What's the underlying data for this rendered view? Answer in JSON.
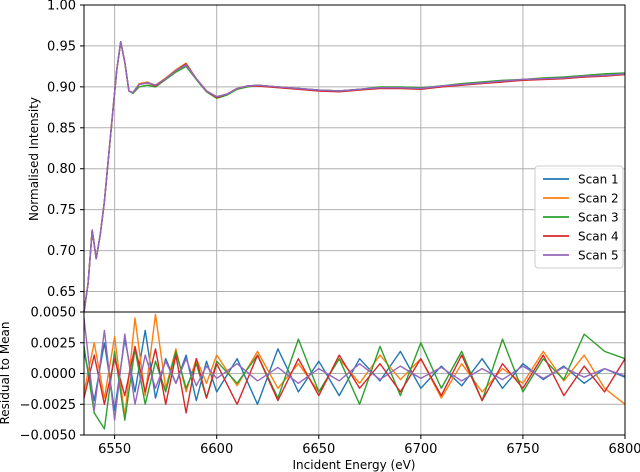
{
  "chart_data": [
    {
      "type": "line",
      "panel": "top",
      "xlabel": "",
      "ylabel": "Normalised Intensity",
      "xlim": [
        6535,
        6800
      ],
      "ylim": [
        0.625,
        1.0
      ],
      "grid": true,
      "legend_position": "center-right",
      "xticks": [
        6550,
        6600,
        6650,
        6700,
        6750,
        6800
      ],
      "yticks": [
        0.65,
        0.7,
        0.75,
        0.8,
        0.85,
        0.9,
        0.95,
        1.0
      ],
      "ytick_labels": [
        "0.65",
        "0.70",
        "0.75",
        "0.80",
        "0.85",
        "0.90",
        "0.95",
        "1.00"
      ],
      "x": [
        6535,
        6537,
        6539,
        6541,
        6543,
        6545,
        6548,
        6551,
        6553,
        6555,
        6557,
        6559,
        6562,
        6566,
        6570,
        6575,
        6580,
        6585,
        6590,
        6595,
        6600,
        6605,
        6610,
        6615,
        6620,
        6630,
        6640,
        6650,
        6660,
        6670,
        6680,
        6690,
        6700,
        6710,
        6720,
        6730,
        6740,
        6750,
        6760,
        6770,
        6780,
        6790,
        6800
      ],
      "series": [
        {
          "name": "Scan 1",
          "color": "#1f77b4",
          "values": [
            0.625,
            0.66,
            0.725,
            0.69,
            0.72,
            0.76,
            0.84,
            0.92,
            0.955,
            0.93,
            0.895,
            0.893,
            0.903,
            0.905,
            0.902,
            0.91,
            0.92,
            0.927,
            0.91,
            0.895,
            0.888,
            0.891,
            0.898,
            0.901,
            0.902,
            0.9,
            0.898,
            0.896,
            0.895,
            0.897,
            0.899,
            0.899,
            0.898,
            0.901,
            0.903,
            0.905,
            0.907,
            0.909,
            0.91,
            0.911,
            0.913,
            0.914,
            0.916
          ]
        },
        {
          "name": "Scan 2",
          "color": "#ff7f0e",
          "values": [
            0.625,
            0.66,
            0.725,
            0.69,
            0.72,
            0.76,
            0.84,
            0.92,
            0.955,
            0.93,
            0.895,
            0.893,
            0.904,
            0.906,
            0.902,
            0.911,
            0.921,
            0.929,
            0.91,
            0.895,
            0.888,
            0.891,
            0.898,
            0.901,
            0.902,
            0.9,
            0.898,
            0.896,
            0.895,
            0.897,
            0.899,
            0.899,
            0.898,
            0.9,
            0.902,
            0.905,
            0.907,
            0.908,
            0.91,
            0.911,
            0.912,
            0.914,
            0.915
          ]
        },
        {
          "name": "Scan 3",
          "color": "#2ca02c",
          "values": [
            0.625,
            0.66,
            0.725,
            0.69,
            0.72,
            0.76,
            0.84,
            0.92,
            0.955,
            0.93,
            0.895,
            0.892,
            0.9,
            0.902,
            0.9,
            0.909,
            0.918,
            0.925,
            0.909,
            0.894,
            0.886,
            0.89,
            0.897,
            0.9,
            0.902,
            0.9,
            0.898,
            0.896,
            0.895,
            0.897,
            0.9,
            0.9,
            0.899,
            0.901,
            0.904,
            0.906,
            0.908,
            0.909,
            0.911,
            0.912,
            0.914,
            0.916,
            0.917
          ]
        },
        {
          "name": "Scan 4",
          "color": "#d62728",
          "values": [
            0.625,
            0.66,
            0.725,
            0.69,
            0.72,
            0.76,
            0.84,
            0.92,
            0.955,
            0.93,
            0.895,
            0.893,
            0.903,
            0.905,
            0.901,
            0.91,
            0.92,
            0.928,
            0.91,
            0.895,
            0.887,
            0.891,
            0.898,
            0.901,
            0.901,
            0.899,
            0.897,
            0.895,
            0.894,
            0.896,
            0.898,
            0.898,
            0.897,
            0.9,
            0.902,
            0.904,
            0.906,
            0.908,
            0.909,
            0.91,
            0.912,
            0.913,
            0.915
          ]
        },
        {
          "name": "Scan 5",
          "color": "#9467bd",
          "values": [
            0.625,
            0.66,
            0.725,
            0.69,
            0.72,
            0.76,
            0.84,
            0.92,
            0.955,
            0.93,
            0.895,
            0.893,
            0.903,
            0.905,
            0.902,
            0.91,
            0.92,
            0.927,
            0.91,
            0.895,
            0.888,
            0.891,
            0.898,
            0.901,
            0.902,
            0.9,
            0.898,
            0.896,
            0.895,
            0.897,
            0.899,
            0.899,
            0.898,
            0.901,
            0.903,
            0.905,
            0.907,
            0.909,
            0.91,
            0.911,
            0.913,
            0.914,
            0.916
          ]
        }
      ]
    },
    {
      "type": "line",
      "panel": "bottom",
      "xlabel": "Incident Energy (eV)",
      "ylabel": "Residual to Mean",
      "xlim": [
        6535,
        6800
      ],
      "ylim": [
        -0.005,
        0.005
      ],
      "grid": true,
      "xticks": [
        6550,
        6600,
        6650,
        6700,
        6750,
        6800
      ],
      "yticks": [
        -0.005,
        -0.0025,
        0.0,
        0.0025,
        0.005
      ],
      "ytick_labels": [
        "−0.0050",
        "−0.0025",
        "0.0000",
        "0.0025",
        "0.0050"
      ],
      "x": [
        6535,
        6540,
        6545,
        6550,
        6555,
        6560,
        6565,
        6570,
        6575,
        6580,
        6585,
        6590,
        6595,
        6600,
        6610,
        6620,
        6630,
        6640,
        6650,
        6660,
        6670,
        6680,
        6690,
        6700,
        6710,
        6720,
        6730,
        6740,
        6750,
        6760,
        6770,
        6780,
        6790,
        6800
      ],
      "series": [
        {
          "name": "Scan 1",
          "color": "#1f77b4",
          "values": [
            0.0018,
            -0.0022,
            0.0025,
            -0.003,
            0.0028,
            -0.0015,
            0.0035,
            -0.002,
            0.0012,
            -0.0008,
            0.0015,
            -0.0022,
            0.001,
            -0.0015,
            0.0012,
            -0.0025,
            0.002,
            -0.0015,
            0.001,
            -0.0018,
            0.0012,
            -0.0006,
            0.0018,
            -0.0012,
            0.0006,
            -0.001,
            0.0012,
            -0.0012,
            0.0008,
            -0.0005,
            0.0006,
            -0.0008,
            0.0004,
            -0.0003
          ]
        },
        {
          "name": "Scan 2",
          "color": "#ff7f0e",
          "values": [
            -0.0015,
            0.0025,
            -0.002,
            0.003,
            -0.0035,
            0.0045,
            -0.0018,
            0.0048,
            -0.0012,
            0.002,
            -0.0015,
            0.0012,
            -0.0008,
            0.0015,
            -0.001,
            0.0018,
            -0.0012,
            0.0008,
            -0.0015,
            0.0012,
            -0.0008,
            0.0015,
            -0.0005,
            0.0012,
            -0.002,
            0.0008,
            -0.0015,
            0.0004,
            -0.0008,
            0.0018,
            -0.0006,
            0.0015,
            -0.0012,
            -0.0025
          ]
        },
        {
          "name": "Scan 3",
          "color": "#2ca02c",
          "values": [
            0.0022,
            -0.0032,
            -0.0045,
            0.0018,
            -0.0038,
            0.002,
            -0.0025,
            0.001,
            -0.0015,
            0.0018,
            -0.0012,
            0.0008,
            -0.002,
            0.001,
            -0.0008,
            0.0015,
            -0.002,
            0.0028,
            -0.0015,
            0.0012,
            -0.0025,
            0.0022,
            -0.0018,
            0.0025,
            -0.0012,
            0.0018,
            -0.0022,
            0.0028,
            -0.0015,
            0.0012,
            -0.0005,
            0.0032,
            0.0018,
            0.0012
          ]
        },
        {
          "name": "Scan 4",
          "color": "#d62728",
          "values": [
            -0.002,
            0.0015,
            -0.0025,
            0.0012,
            -0.0018,
            0.0022,
            -0.0015,
            0.002,
            -0.0025,
            0.0015,
            -0.0032,
            0.0012,
            -0.002,
            0.0008,
            -0.0025,
            0.0015,
            -0.0022,
            0.0012,
            -0.0018,
            0.0015,
            -0.0012,
            0.0008,
            -0.0015,
            0.0012,
            -0.0018,
            0.0015,
            -0.0022,
            0.0008,
            -0.0012,
            0.0015,
            -0.0018,
            0.0006,
            -0.0015,
            0.0012
          ]
        },
        {
          "name": "Scan 5",
          "color": "#9467bd",
          "values": [
            0.0045,
            -0.003,
            0.0035,
            -0.0038,
            0.0032,
            -0.0025,
            0.0015,
            -0.0012,
            0.001,
            -0.0008,
            0.0012,
            -0.001,
            0.0006,
            -0.0004,
            0.0008,
            -0.0006,
            0.0005,
            -0.0008,
            0.0004,
            -0.0006,
            0.0008,
            -0.0005,
            0.0006,
            -0.0004,
            0.0005,
            -0.0006,
            0.0004,
            -0.0005,
            0.0006,
            -0.0004,
            0.0005,
            -0.0003,
            0.0004,
            -0.0002
          ]
        }
      ]
    }
  ]
}
